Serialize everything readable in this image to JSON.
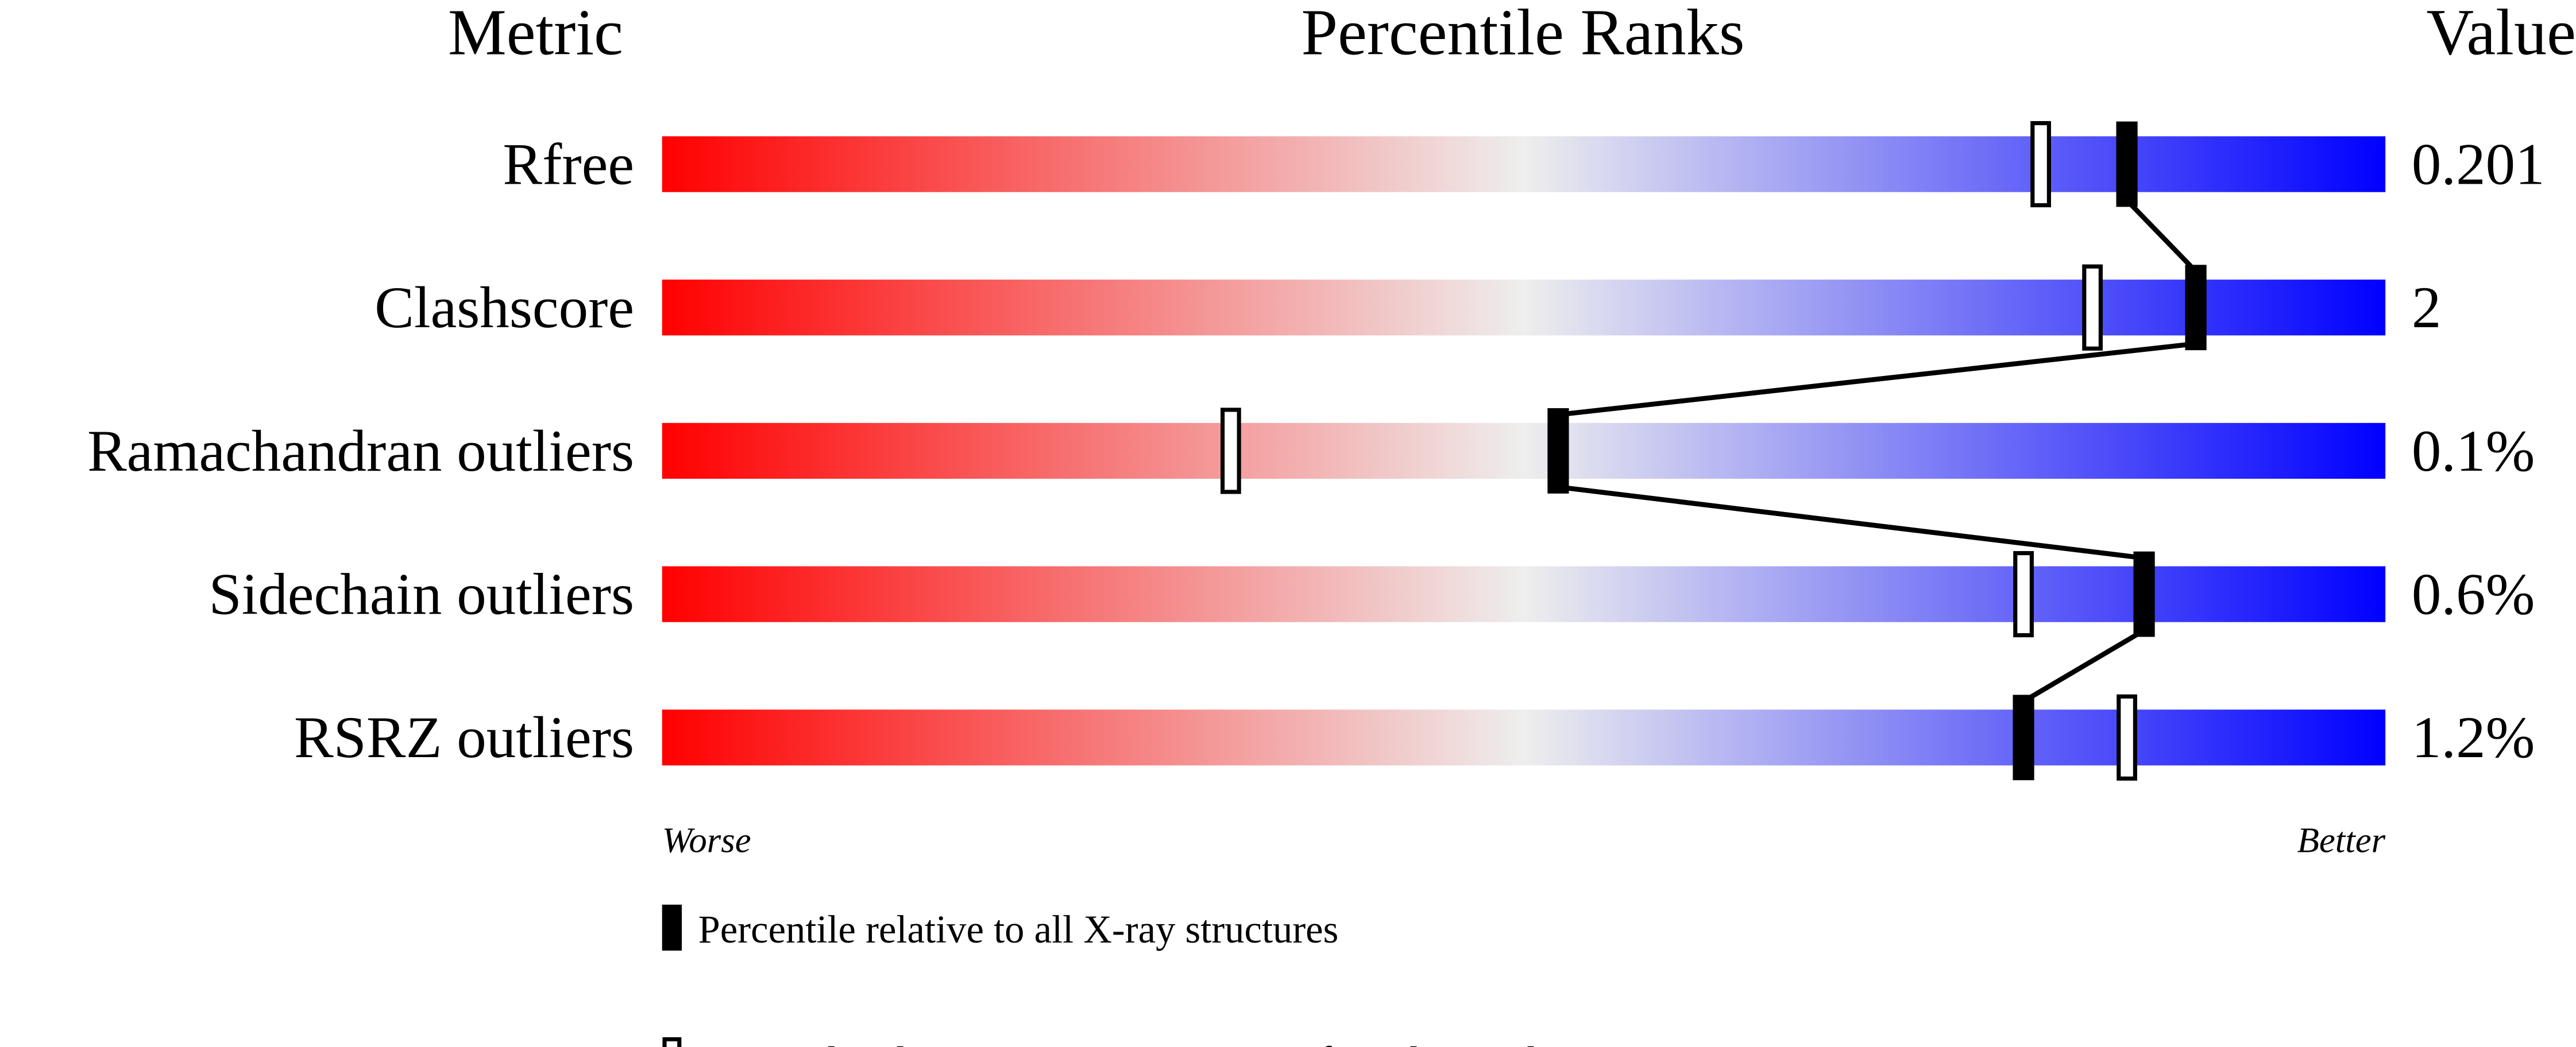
{
  "chart_data": {
    "type": "percentile-slider",
    "headers": {
      "metric": "Metric",
      "ranks": "Percentile Ranks",
      "value": "Value"
    },
    "xlim": [
      0,
      100
    ],
    "axis_labels": {
      "left": "Worse",
      "right": "Better"
    },
    "gradient_colors": [
      "#ff0000",
      "#eeeeee",
      "#0000ff"
    ],
    "rows": [
      {
        "metric": "Rfree",
        "value": "0.201",
        "percentile_all": 85,
        "percentile_similar": 80
      },
      {
        "metric": "Clashscore",
        "value": "2",
        "percentile_all": 89,
        "percentile_similar": 83
      },
      {
        "metric": "Ramachandran outliers",
        "value": "0.1%",
        "percentile_all": 52,
        "percentile_similar": 33
      },
      {
        "metric": "Sidechain outliers",
        "value": "0.6%",
        "percentile_all": 86,
        "percentile_similar": 79
      },
      {
        "metric": "RSRZ outliers",
        "value": "1.2%",
        "percentile_all": 79,
        "percentile_similar": 85
      }
    ],
    "legend": [
      {
        "marker": "filled",
        "label": "Percentile relative to all X-ray structures"
      },
      {
        "marker": "open",
        "label": "Percentile relative to X-ray structures of similar resolution"
      }
    ]
  }
}
